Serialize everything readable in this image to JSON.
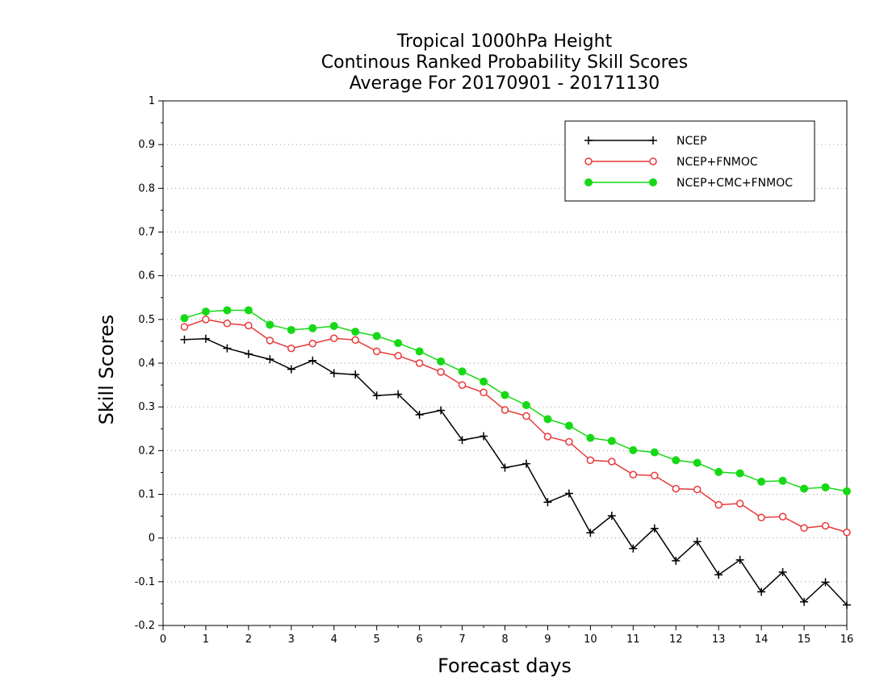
{
  "chart_data": {
    "type": "line",
    "title": [
      "Tropical 1000hPa Height",
      "Continous Ranked Probability Skill Scores",
      "Average For 20170901 - 20171130"
    ],
    "xlabel": "Forecast days",
    "ylabel": "Skill Scores",
    "xlim": [
      0,
      16
    ],
    "ylim": [
      -0.2,
      1
    ],
    "xticks": [
      0,
      1,
      2,
      3,
      4,
      5,
      6,
      7,
      8,
      9,
      10,
      11,
      12,
      13,
      14,
      15,
      16
    ],
    "yticks": [
      -0.2,
      -0.1,
      0,
      0.1,
      0.2,
      0.3,
      0.4,
      0.5,
      0.6,
      0.7,
      0.8,
      0.9,
      1
    ],
    "ytick_labels": [
      "-0.2",
      "-0.1",
      "0",
      "0.1",
      "0.2",
      "0.3",
      "0.4",
      "0.5",
      "0.6",
      "0.7",
      "0.8",
      "0.9",
      "1"
    ],
    "grid": "horizontal dotted",
    "legend_position": "top-right",
    "x": [
      0.5,
      1,
      1.5,
      2,
      2.5,
      3,
      3.5,
      4,
      4.5,
      5,
      5.5,
      6,
      6.5,
      7,
      7.5,
      8,
      8.5,
      9,
      9.5,
      10,
      10.5,
      11,
      11.5,
      12,
      12.5,
      13,
      13.5,
      14,
      14.5,
      15,
      15.5,
      16
    ],
    "series": [
      {
        "name": "NCEP",
        "color": "#000000",
        "marker": "plus",
        "values": [
          0.454,
          0.456,
          0.434,
          0.421,
          0.409,
          0.386,
          0.406,
          0.377,
          0.374,
          0.326,
          0.329,
          0.282,
          0.292,
          0.224,
          0.233,
          0.161,
          0.17,
          0.082,
          0.102,
          0.012,
          0.051,
          -0.024,
          0.022,
          -0.052,
          -0.008,
          -0.084,
          -0.05,
          -0.123,
          -0.078,
          -0.146,
          -0.101,
          -0.153
        ]
      },
      {
        "name": "NCEP+FNMOC",
        "color": "#e8393a",
        "marker": "open-circle",
        "values": [
          0.483,
          0.5,
          0.491,
          0.486,
          0.452,
          0.434,
          0.445,
          0.457,
          0.453,
          0.427,
          0.417,
          0.4,
          0.38,
          0.35,
          0.333,
          0.293,
          0.279,
          0.232,
          0.22,
          0.178,
          0.175,
          0.145,
          0.143,
          0.113,
          0.111,
          0.076,
          0.079,
          0.047,
          0.049,
          0.023,
          0.028,
          0.013
        ]
      },
      {
        "name": "NCEP+CMC+FNMOC",
        "color": "#16d916",
        "marker": "filled-circle",
        "values": [
          0.503,
          0.518,
          0.521,
          0.521,
          0.488,
          0.476,
          0.48,
          0.485,
          0.472,
          0.462,
          0.446,
          0.427,
          0.404,
          0.381,
          0.358,
          0.327,
          0.304,
          0.272,
          0.257,
          0.229,
          0.222,
          0.201,
          0.196,
          0.178,
          0.172,
          0.151,
          0.148,
          0.129,
          0.131,
          0.113,
          0.116,
          0.107
        ]
      }
    ]
  }
}
